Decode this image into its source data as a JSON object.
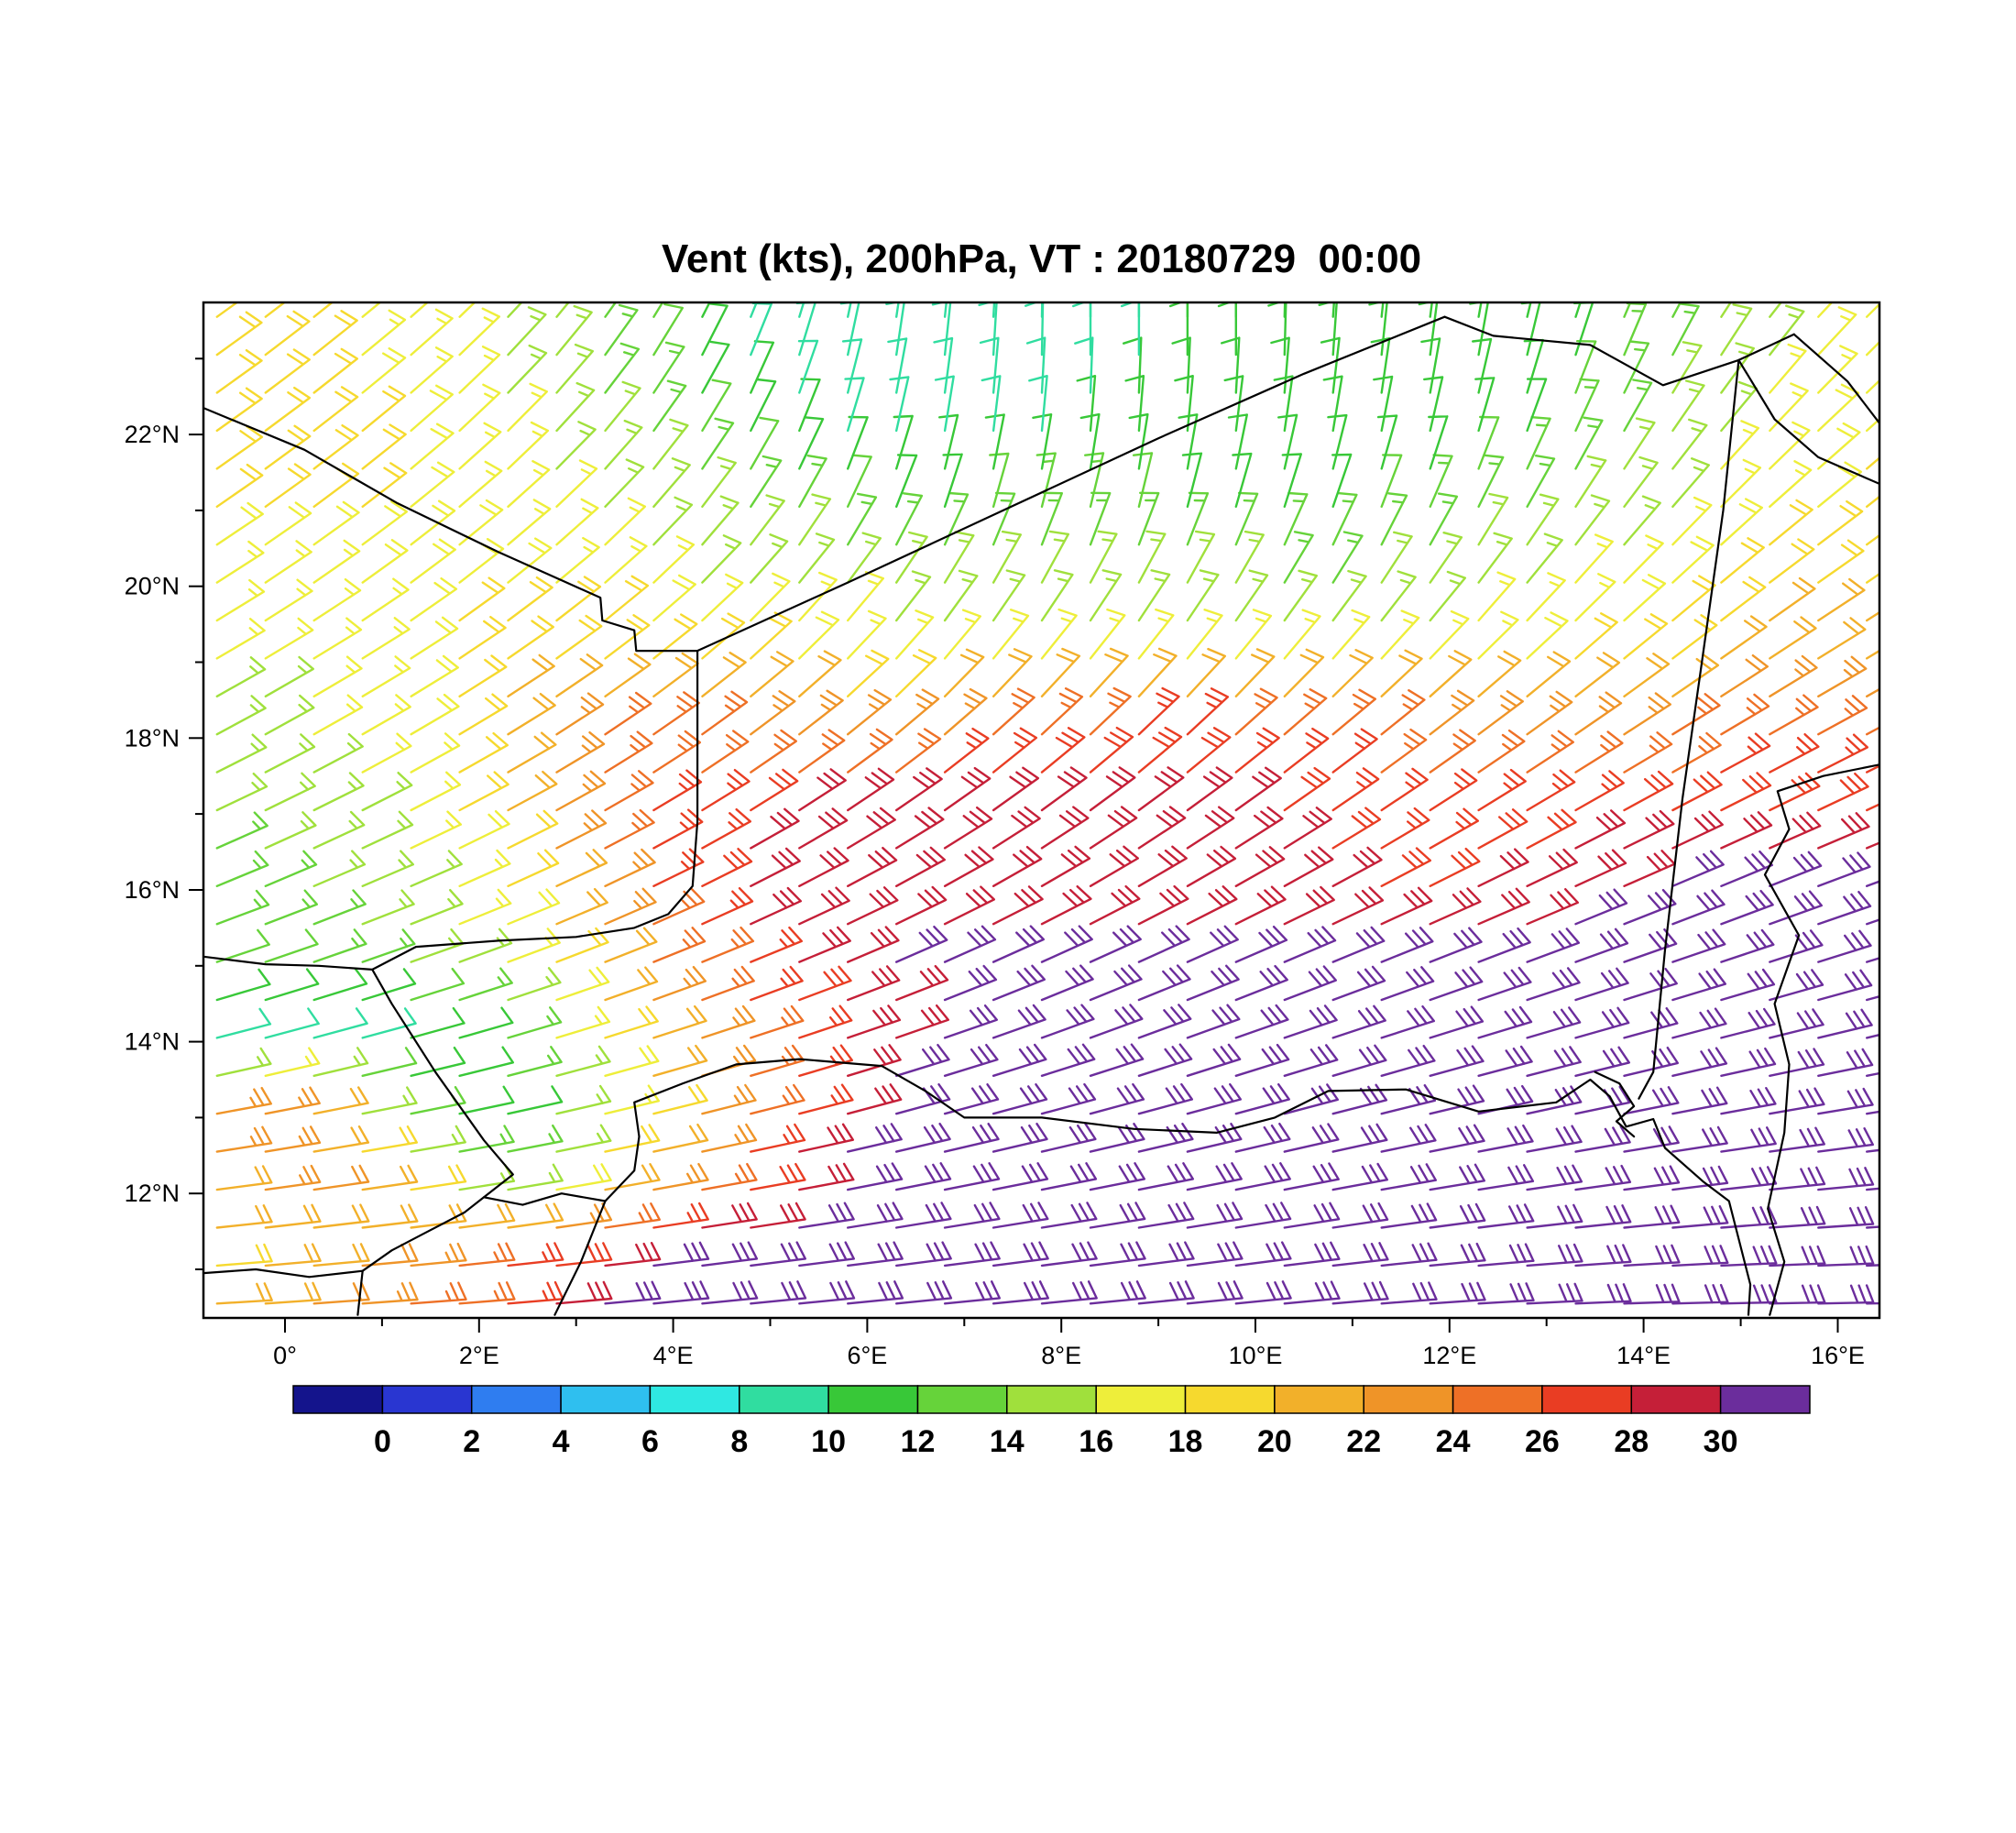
{
  "chart_data": {
    "type": "wind_barb_map",
    "title": "Vent (kts), 200hPa, VT : 20180729  00:00",
    "parameter": "Vent",
    "units": "kts",
    "level": "200hPa",
    "valid_time": "20180729  00:00",
    "lon_range": [
      -0.84,
      16.43
    ],
    "lat_range": [
      10.36,
      23.74
    ],
    "lon_ticks": [
      {
        "value": 0,
        "label": "0°"
      },
      {
        "value": 2,
        "label": "2°E"
      },
      {
        "value": 4,
        "label": "4°E"
      },
      {
        "value": 6,
        "label": "6°E"
      },
      {
        "value": 8,
        "label": "8°E"
      },
      {
        "value": 10,
        "label": "10°E"
      },
      {
        "value": 12,
        "label": "12°E"
      },
      {
        "value": 14,
        "label": "14°E"
      },
      {
        "value": 16,
        "label": "16°E"
      }
    ],
    "lat_ticks": [
      {
        "value": 12,
        "label": "12°N"
      },
      {
        "value": 14,
        "label": "14°N"
      },
      {
        "value": 16,
        "label": "16°N"
      },
      {
        "value": 18,
        "label": "18°N"
      },
      {
        "value": 20,
        "label": "20°N"
      },
      {
        "value": 22,
        "label": "22°N"
      }
    ],
    "colorbar": {
      "labels": [
        "0",
        "2",
        "4",
        "6",
        "8",
        "10",
        "12",
        "14",
        "16",
        "18",
        "20",
        "22",
        "24",
        "26",
        "28",
        "30"
      ],
      "levels": [
        0,
        2,
        4,
        6,
        8,
        10,
        12,
        14,
        16,
        18,
        20,
        22,
        24,
        26,
        28,
        30
      ],
      "colors": [
        "#14148c",
        "#2936d1",
        "#2f7df0",
        "#2fbfef",
        "#2fe8e2",
        "#30dda0",
        "#38c838",
        "#66d33a",
        "#a0e03c",
        "#eeee3a",
        "#f6d92e",
        "#f2b02a",
        "#ef9428",
        "#ee7026",
        "#e93d23",
        "#c51f38",
        "#6b2d9c"
      ]
    },
    "wind_grid": {
      "lon_start": -1,
      "lon_step": 1,
      "lat_start": 23,
      "lat_step": -1,
      "speed_kts": [
        [
          19,
          19,
          17,
          16,
          14,
          12,
          9,
          8,
          8,
          9,
          10,
          10,
          10,
          10,
          11,
          13,
          15,
          17
        ],
        [
          19,
          19,
          18,
          17,
          15,
          13,
          11,
          9,
          9,
          10,
          11,
          11,
          11,
          11,
          12,
          14,
          16,
          18
        ],
        [
          18,
          18,
          18,
          17,
          16,
          15,
          13,
          12,
          12,
          13,
          12,
          12,
          12,
          13,
          14,
          15,
          17,
          18
        ],
        [
          17,
          17,
          18,
          18,
          17,
          16,
          16,
          15,
          15,
          15,
          15,
          14,
          14,
          15,
          16,
          17,
          19,
          20
        ],
        [
          16,
          16,
          17,
          19,
          20,
          19,
          18,
          17,
          17,
          17,
          17,
          17,
          17,
          17,
          18,
          19,
          21,
          22
        ],
        [
          15,
          16,
          17,
          20,
          24,
          25,
          24,
          23,
          24,
          26,
          27,
          26,
          25,
          24,
          23,
          24,
          25,
          26
        ],
        [
          14,
          15,
          16,
          19,
          25,
          27,
          28,
          29,
          30,
          30,
          29,
          28,
          27,
          27,
          27,
          28,
          28,
          28
        ],
        [
          13,
          14,
          15,
          17,
          22,
          27,
          29,
          29,
          28,
          29,
          29,
          29,
          28,
          28,
          29,
          30,
          31,
          31
        ],
        [
          12,
          12,
          14,
          16,
          20,
          25,
          28,
          30,
          31,
          31,
          31,
          31,
          31,
          30,
          31,
          31,
          32,
          32
        ],
        [
          10,
          9,
          9,
          12,
          17,
          22,
          26,
          29,
          31,
          32,
          32,
          32,
          32,
          32,
          32,
          32,
          32,
          32
        ],
        [
          23,
          25,
          14,
          10,
          15,
          21,
          26,
          30,
          32,
          32,
          32,
          32,
          32,
          32,
          32,
          32,
          32,
          32
        ],
        [
          21,
          23,
          20,
          15,
          19,
          24,
          29,
          32,
          32,
          32,
          32,
          32,
          32,
          32,
          32,
          32,
          32,
          32
        ],
        [
          19,
          21,
          23,
          26,
          29,
          31,
          32,
          32,
          32,
          32,
          32,
          32,
          32,
          32,
          32,
          32,
          32,
          32
        ],
        [
          20,
          22,
          24,
          27,
          31,
          32,
          32,
          32,
          32,
          32,
          32,
          32,
          32,
          32,
          32,
          32,
          32,
          32
        ]
      ],
      "direction_from_deg": [
        [
          55,
          52,
          50,
          45,
          38,
          30,
          20,
          10,
          5,
          0,
          0,
          0,
          5,
          8,
          15,
          25,
          35,
          45
        ],
        [
          55,
          53,
          50,
          46,
          42,
          34,
          25,
          15,
          8,
          5,
          5,
          8,
          10,
          14,
          22,
          32,
          42,
          48
        ],
        [
          56,
          54,
          52,
          49,
          46,
          40,
          32,
          24,
          17,
          14,
          14,
          17,
          20,
          25,
          31,
          39,
          47,
          52
        ],
        [
          58,
          56,
          54,
          52,
          50,
          46,
          41,
          36,
          31,
          29,
          29,
          31,
          33,
          36,
          41,
          46,
          52,
          56
        ],
        [
          60,
          59,
          58,
          56,
          54,
          51,
          47,
          43,
          40,
          39,
          39,
          40,
          42,
          45,
          48,
          52,
          56,
          59
        ],
        [
          62,
          61,
          60,
          59,
          57,
          55,
          53,
          51,
          49,
          47,
          47,
          49,
          51,
          53,
          55,
          58,
          60,
          62
        ],
        [
          65,
          64,
          63,
          62,
          61,
          59,
          58,
          56,
          55,
          54,
          54,
          55,
          56,
          58,
          60,
          62,
          64,
          65
        ],
        [
          68,
          67,
          67,
          66,
          65,
          64,
          63,
          62,
          61,
          60,
          60,
          61,
          62,
          64,
          65,
          67,
          68,
          70
        ],
        [
          72,
          71,
          71,
          70,
          69,
          68,
          68,
          67,
          66,
          66,
          66,
          67,
          68,
          69,
          70,
          71,
          72,
          73
        ],
        [
          76,
          75,
          75,
          74,
          73,
          72,
          72,
          71,
          71,
          70,
          70,
          71,
          72,
          73,
          74,
          75,
          76,
          77
        ],
        [
          80,
          79,
          79,
          78,
          77,
          76,
          76,
          75,
          75,
          75,
          75,
          75,
          76,
          77,
          78,
          79,
          80,
          81
        ],
        [
          83,
          82,
          82,
          81,
          80,
          80,
          80,
          79,
          79,
          79,
          79,
          79,
          80,
          81,
          82,
          83,
          84,
          85
        ],
        [
          86,
          85,
          85,
          84,
          84,
          83,
          83,
          83,
          83,
          83,
          83,
          83,
          84,
          85,
          86,
          87,
          88,
          88
        ],
        [
          88,
          87,
          87,
          87,
          86,
          86,
          86,
          86,
          86,
          86,
          86,
          86,
          87,
          88,
          89,
          90,
          90,
          90
        ]
      ]
    },
    "barb_spacing_deg": 0.5,
    "borders": [
      [
        [
          -0.84,
          22.35
        ],
        [
          0.2,
          21.8
        ],
        [
          1.15,
          21.1
        ],
        [
          2.2,
          20.45
        ],
        [
          3.25,
          19.85
        ],
        [
          3.27,
          19.55
        ],
        [
          3.6,
          19.42
        ],
        [
          3.62,
          19.15
        ],
        [
          4.25,
          19.15
        ]
      ],
      [
        [
          4.25,
          19.15
        ],
        [
          5.8,
          20.05
        ],
        [
          7.4,
          21.0
        ],
        [
          9.0,
          21.95
        ],
        [
          10.5,
          22.8
        ],
        [
          11.95,
          23.55
        ]
      ],
      [
        [
          11.95,
          23.55
        ],
        [
          12.45,
          23.3
        ],
        [
          13.45,
          23.18
        ],
        [
          14.2,
          22.65
        ],
        [
          14.98,
          22.98
        ],
        [
          15.55,
          23.32
        ]
      ],
      [
        [
          15.55,
          23.32
        ],
        [
          16.1,
          22.7
        ],
        [
          16.43,
          22.15
        ]
      ],
      [
        [
          14.98,
          22.98
        ],
        [
          15.35,
          22.2
        ],
        [
          15.8,
          21.7
        ],
        [
          16.43,
          21.35
        ]
      ],
      [
        [
          14.98,
          22.98
        ],
        [
          14.82,
          21.0
        ],
        [
          14.6,
          19.0
        ],
        [
          14.4,
          17.2
        ],
        [
          14.22,
          15.2
        ],
        [
          14.1,
          13.6
        ],
        [
          13.95,
          13.25
        ]
      ],
      [
        [
          16.43,
          17.65
        ],
        [
          15.85,
          17.5
        ],
        [
          15.38,
          17.3
        ],
        [
          15.5,
          16.8
        ],
        [
          15.25,
          16.2
        ],
        [
          15.6,
          15.4
        ],
        [
          15.35,
          14.5
        ],
        [
          15.5,
          13.7
        ],
        [
          15.45,
          12.8
        ],
        [
          15.28,
          11.8
        ],
        [
          15.45,
          11.1
        ],
        [
          15.3,
          10.4
        ]
      ],
      [
        [
          0.9,
          14.95
        ],
        [
          1.1,
          14.5
        ],
        [
          1.55,
          13.6
        ],
        [
          2.05,
          12.7
        ],
        [
          2.35,
          12.25
        ],
        [
          2.05,
          11.95
        ],
        [
          2.45,
          11.85
        ],
        [
          2.85,
          12.0
        ],
        [
          3.3,
          11.9
        ],
        [
          3.6,
          12.3
        ],
        [
          3.65,
          12.75
        ],
        [
          3.6,
          13.2
        ],
        [
          4.1,
          13.45
        ],
        [
          4.65,
          13.7
        ],
        [
          5.3,
          13.77
        ],
        [
          6.15,
          13.68
        ],
        [
          6.6,
          13.35
        ],
        [
          7.0,
          13.0
        ],
        [
          7.8,
          13.0
        ],
        [
          8.75,
          12.85
        ],
        [
          9.6,
          12.8
        ],
        [
          10.2,
          13.0
        ],
        [
          10.75,
          13.35
        ],
        [
          11.55,
          13.37
        ],
        [
          12.3,
          13.08
        ],
        [
          13.1,
          13.2
        ],
        [
          13.45,
          13.5
        ],
        [
          13.65,
          13.28
        ],
        [
          13.82,
          12.88
        ],
        [
          14.1,
          12.98
        ],
        [
          14.22,
          12.6
        ],
        [
          14.62,
          12.15
        ],
        [
          14.88,
          11.9
        ],
        [
          14.98,
          11.4
        ],
        [
          15.1,
          10.8
        ],
        [
          15.08,
          10.4
        ]
      ],
      [
        [
          -0.84,
          15.12
        ],
        [
          -0.2,
          15.02
        ],
        [
          0.35,
          15.0
        ],
        [
          0.9,
          14.95
        ],
        [
          1.35,
          15.25
        ],
        [
          2.2,
          15.33
        ],
        [
          3.0,
          15.38
        ],
        [
          3.6,
          15.5
        ],
        [
          3.95,
          15.68
        ],
        [
          4.2,
          16.05
        ],
        [
          4.25,
          16.9
        ],
        [
          4.25,
          19.15
        ]
      ],
      [
        [
          -0.84,
          10.95
        ],
        [
          -0.3,
          11.0
        ],
        [
          0.25,
          10.9
        ],
        [
          0.8,
          10.98
        ],
        [
          1.1,
          11.25
        ],
        [
          1.4,
          11.45
        ],
        [
          1.85,
          11.75
        ],
        [
          2.05,
          11.95
        ]
      ],
      [
        [
          0.8,
          10.98
        ],
        [
          0.75,
          10.4
        ]
      ],
      [
        [
          3.3,
          11.9
        ],
        [
          3.05,
          11.1
        ],
        [
          2.78,
          10.4
        ]
      ],
      [
        [
          13.5,
          13.6
        ],
        [
          13.75,
          13.45
        ],
        [
          13.9,
          13.15
        ],
        [
          13.72,
          12.95
        ],
        [
          13.9,
          12.75
        ]
      ]
    ],
    "style": {
      "background": "#ffffff",
      "frame_color": "#000000",
      "border_color": "#000000",
      "text_color": "#000000"
    }
  }
}
